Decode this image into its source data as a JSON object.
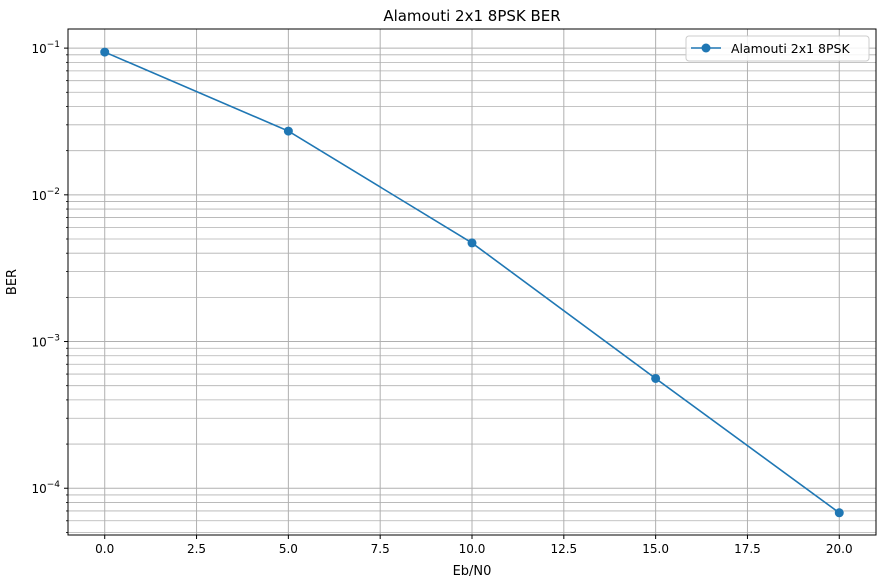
{
  "chart_data": {
    "type": "line",
    "title": "Alamouti 2x1 8PSK BER",
    "xlabel": "Eb/N0",
    "ylabel": "BER",
    "yscale": "log",
    "grid": true,
    "grid_minor": true,
    "xlim": [
      -1,
      21
    ],
    "ylim": [
      4.8e-05,
      0.135
    ],
    "xticks": [
      0.0,
      2.5,
      5.0,
      7.5,
      10.0,
      12.5,
      15.0,
      17.5,
      20.0
    ],
    "xtick_labels": [
      "0.0",
      "2.5",
      "5.0",
      "7.5",
      "10.0",
      "12.5",
      "15.0",
      "17.5",
      "20.0"
    ],
    "yticks": [
      0.1,
      0.01,
      0.001,
      0.0001
    ],
    "ytick_labels": [
      {
        "base": "10",
        "exp": "−1"
      },
      {
        "base": "10",
        "exp": "−2"
      },
      {
        "base": "10",
        "exp": "−3"
      },
      {
        "base": "10",
        "exp": "−4"
      }
    ],
    "legend_position": "top-right",
    "x": [
      0,
      5,
      10,
      15,
      20
    ],
    "series": [
      {
        "name": "Alamouti 2x1 8PSK",
        "color": "#1f77b4",
        "marker": "circle",
        "values": [
          0.094,
          0.0272,
          0.0047,
          0.00056,
          6.8e-05
        ]
      }
    ]
  }
}
